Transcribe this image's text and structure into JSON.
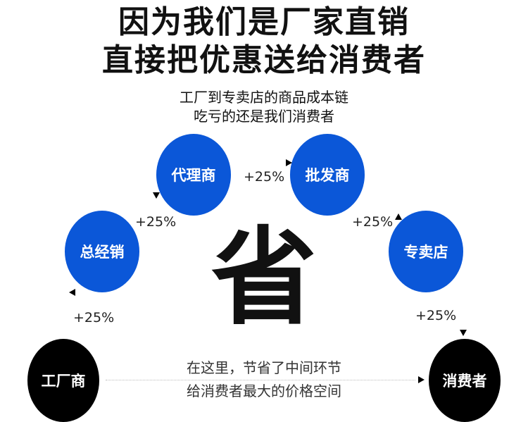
{
  "title": {
    "line1": "因为我们是厂家直销",
    "line2": "直接把优惠送给消费者"
  },
  "subtitle": {
    "line1": "工厂到专卖店的商品成本链",
    "line2": "吃亏的还是我们消费者"
  },
  "nodes": {
    "factory": "工厂商",
    "general_distributor": "总经销",
    "agent": "代理商",
    "wholesaler": "批发商",
    "store": "专卖店",
    "consumer": "消费者"
  },
  "markups": [
    "+25%",
    "+25%",
    "+25%",
    "+25%",
    "+25%"
  ],
  "center_char": "省",
  "bottom": {
    "line1": "在这里，节省了中间环节",
    "line2": "给消费者最大的价格空间"
  },
  "colors": {
    "intermediary": "#0b57d8",
    "endpoint": "#000000"
  }
}
